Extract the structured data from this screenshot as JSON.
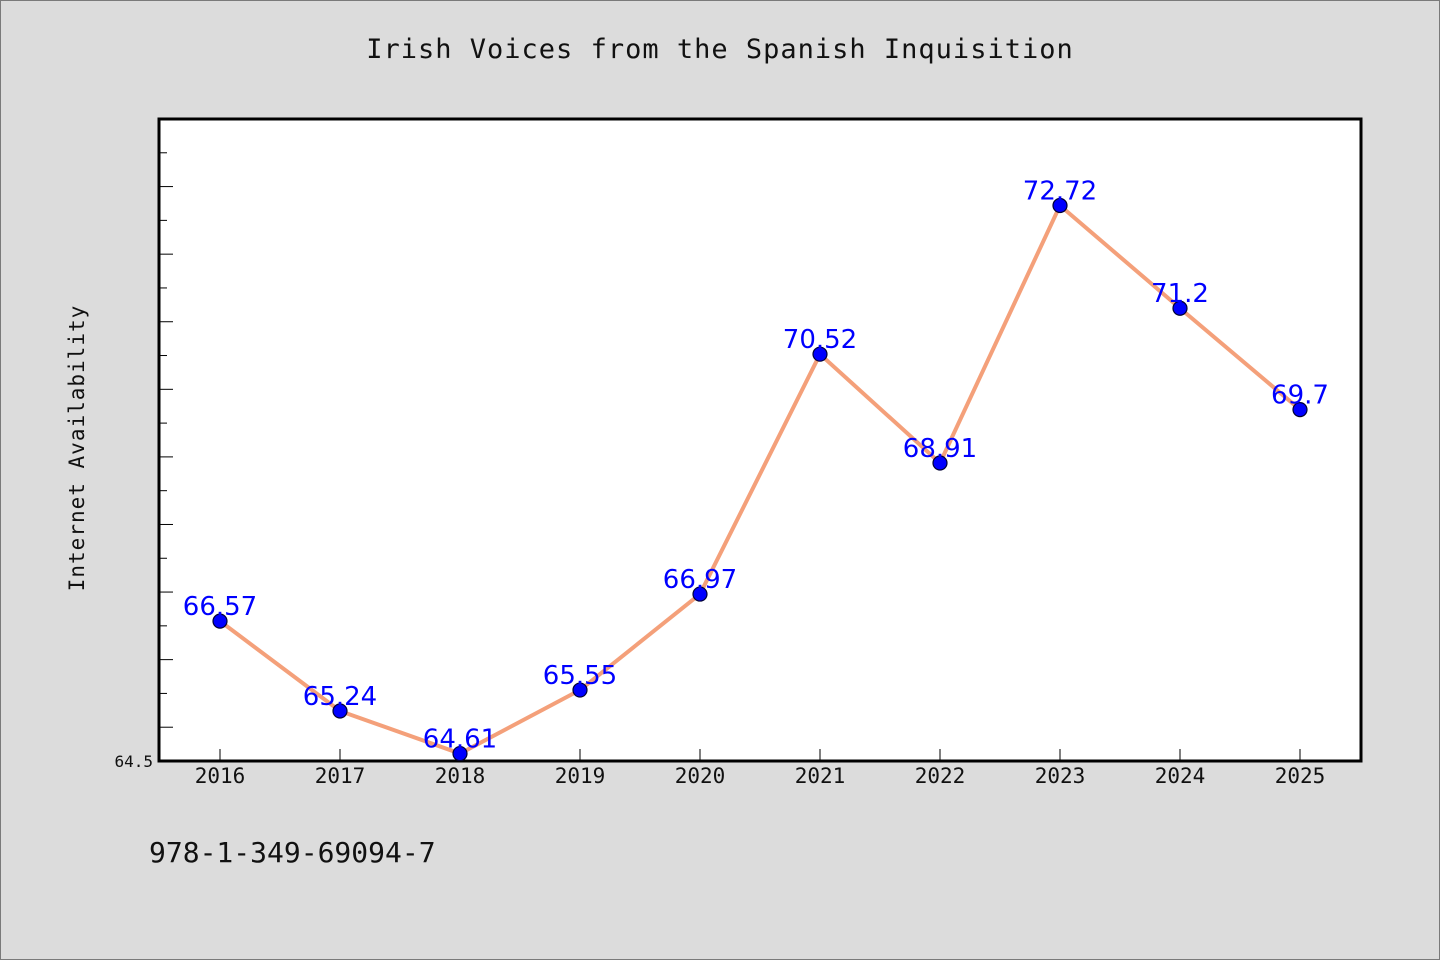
{
  "chart_data": {
    "type": "line",
    "title": "Irish Voices from the Spanish Inquisition",
    "xlabel": "",
    "ylabel": "Internet Availability",
    "categories": [
      "2016",
      "2017",
      "2018",
      "2019",
      "2020",
      "2021",
      "2022",
      "2023",
      "2024",
      "2025"
    ],
    "series": [
      {
        "values": [
          66.57,
          65.24,
          64.61,
          65.55,
          66.97,
          70.52,
          68.91,
          72.72,
          71.2,
          69.7
        ],
        "data_labels": [
          "66.57",
          "65.24",
          "64.61",
          "65.55",
          "66.97",
          "70.52",
          "68.91",
          "72.72",
          "71.2",
          "69.7"
        ]
      }
    ],
    "y_tick_labels": [
      "64.5"
    ],
    "ylim": [
      64.5,
      74.0
    ],
    "grid": false,
    "colors": {
      "line": "#f4a07a",
      "marker": "#0000ff",
      "marker_edge": "#000033",
      "data_label": "#0000ff",
      "plot_background": "#ffffff",
      "figure_background": "#dcdcdc"
    }
  },
  "footer": {
    "isbn": "978-1-349-69094-7"
  }
}
